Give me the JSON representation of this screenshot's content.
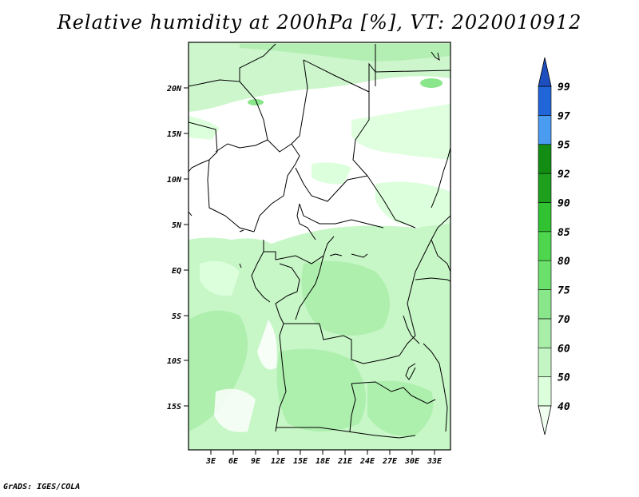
{
  "title": "Relative humidity at 200hPa [%], VT: 2020010912",
  "credit": "GrADS: IGES/COLA",
  "map": {
    "lat_labels": [
      "20N",
      "15N",
      "10N",
      "5N",
      "EQ",
      "5S",
      "10S",
      "15S"
    ],
    "lon_labels": [
      "3E",
      "6E",
      "9E",
      "12E",
      "15E",
      "18E",
      "21E",
      "24E",
      "27E",
      "30E",
      "33E"
    ]
  },
  "colorbar": {
    "levels": [
      "40",
      "50",
      "60",
      "70",
      "75",
      "80",
      "85",
      "90",
      "92",
      "95",
      "97",
      "99"
    ],
    "colors": [
      "#f0fff0",
      "#dcffdc",
      "#c4f5c4",
      "#a8eda8",
      "#8ae68a",
      "#6ce06c",
      "#4ed64e",
      "#30c230",
      "#1ea01e",
      "#128c12",
      "#4a9cf0",
      "#2066d8",
      "#1c4ec0"
    ]
  }
}
